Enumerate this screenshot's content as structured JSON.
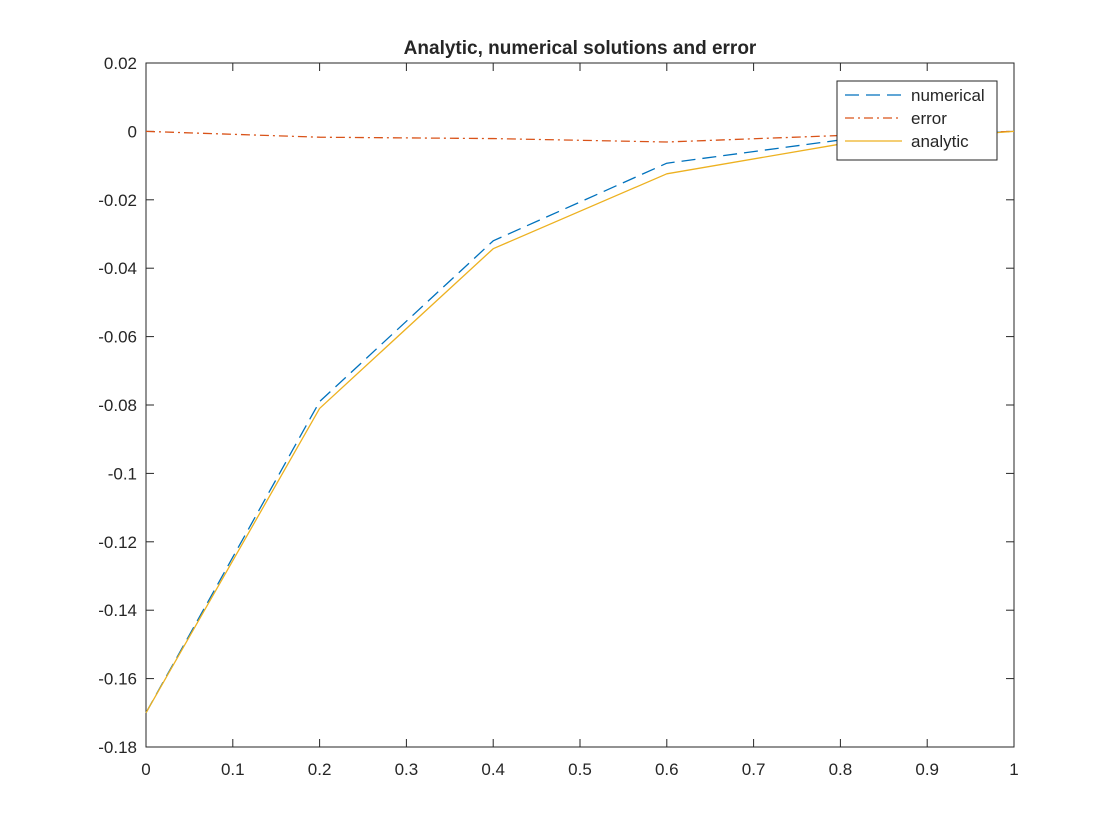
{
  "chart_data": {
    "type": "line",
    "title": "Analytic, numerical solutions and error",
    "xlabel": "",
    "ylabel": "",
    "xlim": [
      0,
      1
    ],
    "ylim": [
      -0.18,
      0.02
    ],
    "xticks": [
      0,
      0.1,
      0.2,
      0.3,
      0.4,
      0.5,
      0.6,
      0.7,
      0.8,
      0.9,
      1
    ],
    "xtick_labels": [
      "0",
      "0.1",
      "0.2",
      "0.3",
      "0.4",
      "0.5",
      "0.6",
      "0.7",
      "0.8",
      "0.9",
      "1"
    ],
    "yticks": [
      0.02,
      0,
      -0.02,
      -0.04,
      -0.06,
      -0.08,
      -0.1,
      -0.12,
      -0.14,
      -0.16,
      -0.18
    ],
    "ytick_labels": [
      "0.02",
      "0",
      "-0.02",
      "-0.04",
      "-0.06",
      "-0.08",
      "-0.1",
      "-0.12",
      "-0.14",
      "-0.16",
      "-0.18"
    ],
    "grid": false,
    "legend_position": "top-right",
    "series": [
      {
        "name": "numerical",
        "style": "dashed",
        "color": "#0072BD",
        "x": [
          0,
          0.2,
          0.4,
          0.6,
          0.8,
          1
        ],
        "y": [
          -0.17,
          -0.079,
          -0.032,
          -0.0093,
          -0.0025,
          0
        ]
      },
      {
        "name": "error",
        "style": "dashdot",
        "color": "#D95319",
        "x": [
          0,
          0.2,
          0.4,
          0.6,
          0.8,
          1
        ],
        "y": [
          0,
          -0.0017,
          -0.0021,
          -0.0031,
          -0.0012,
          0
        ]
      },
      {
        "name": "analytic",
        "style": "solid",
        "color": "#EDB120",
        "x": [
          0,
          0.2,
          0.4,
          0.6,
          0.8,
          1
        ],
        "y": [
          -0.17,
          -0.081,
          -0.0343,
          -0.0124,
          -0.0037,
          0
        ]
      }
    ]
  }
}
